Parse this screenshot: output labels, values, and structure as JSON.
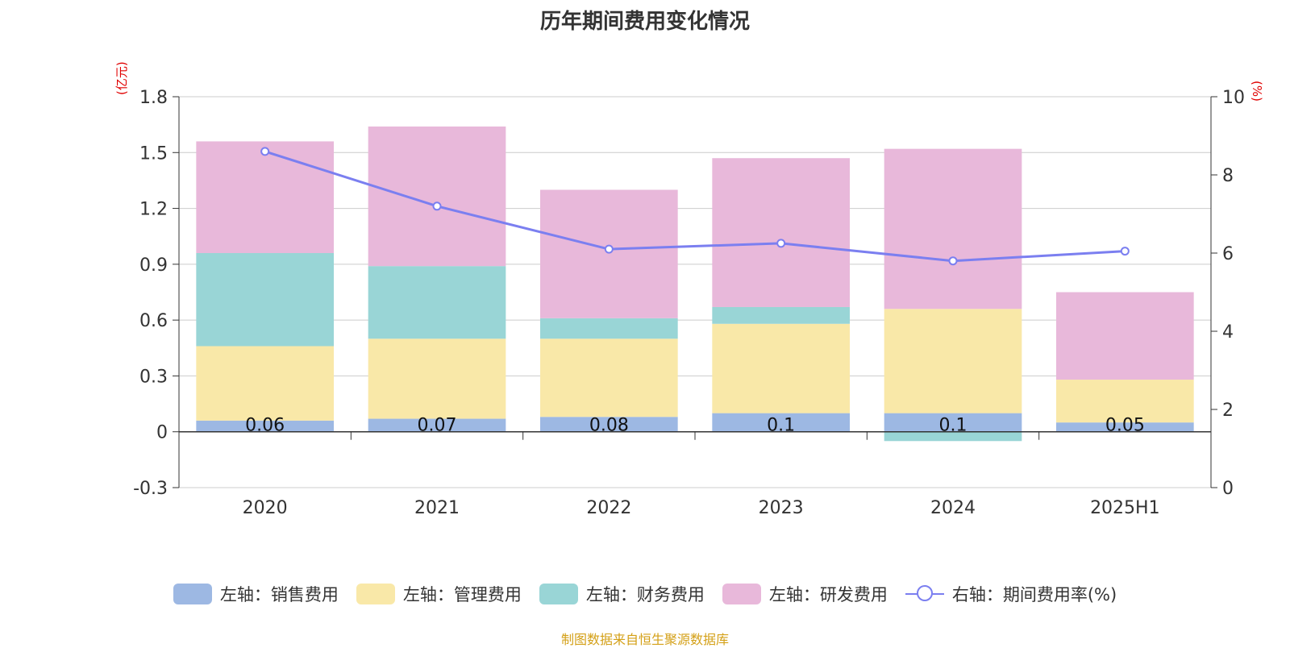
{
  "chart_data": {
    "type": "bar",
    "stacked": true,
    "title": "历年期间费用变化情况",
    "left_unit": "(亿元)",
    "right_unit": "(%)",
    "categories": [
      "2020",
      "2021",
      "2022",
      "2023",
      "2024",
      "2025H1"
    ],
    "left_axis": {
      "min": -0.3,
      "max": 1.8,
      "ticks": [
        "-0.3",
        "0",
        "0.3",
        "0.6",
        "0.9",
        "1.2",
        "1.5",
        "1.8"
      ]
    },
    "right_axis": {
      "min": 0,
      "max": 10,
      "ticks": [
        "0",
        "2",
        "4",
        "6",
        "8",
        "10"
      ]
    },
    "series": [
      {
        "name": "左轴：销售费用",
        "axis": "left",
        "color": "#9db8e3",
        "values": [
          0.06,
          0.07,
          0.08,
          0.1,
          0.1,
          0.05
        ],
        "labels": [
          "0.06",
          "0.07",
          "0.08",
          "0.1",
          "0.1",
          "0.05"
        ]
      },
      {
        "name": "左轴：管理费用",
        "axis": "left",
        "color": "#f9e8a8",
        "values": [
          0.4,
          0.43,
          0.42,
          0.48,
          0.56,
          0.23
        ]
      },
      {
        "name": "左轴：财务费用",
        "axis": "left",
        "color": "#99d5d6",
        "values": [
          0.5,
          0.39,
          0.11,
          0.09,
          -0.05,
          0.0
        ]
      },
      {
        "name": "左轴：研发费用",
        "axis": "left",
        "color": "#e8b8da",
        "values": [
          0.6,
          0.75,
          0.69,
          0.8,
          0.86,
          0.47
        ]
      },
      {
        "name": "右轴：期间费用率(%)",
        "axis": "right",
        "type": "line",
        "color": "#7b7ff0",
        "values": [
          8.6,
          7.2,
          6.1,
          6.25,
          5.8,
          6.05
        ]
      }
    ],
    "grid": true,
    "legend_position": "bottom"
  },
  "source_text": "制图数据来自恒生聚源数据库"
}
